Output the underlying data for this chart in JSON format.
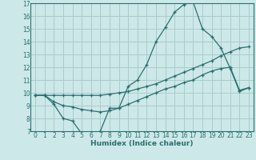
{
  "xlabel": "Humidex (Indice chaleur)",
  "background_color": "#cde8e8",
  "grid_color": "#aacccc",
  "line_color": "#2a7070",
  "xlim": [
    -0.5,
    23.5
  ],
  "ylim": [
    7,
    17
  ],
  "xticks": [
    0,
    1,
    2,
    3,
    4,
    5,
    6,
    7,
    8,
    9,
    10,
    11,
    12,
    13,
    14,
    15,
    16,
    17,
    18,
    19,
    20,
    21,
    22,
    23
  ],
  "yticks": [
    7,
    8,
    9,
    10,
    11,
    12,
    13,
    14,
    15,
    16,
    17
  ],
  "line1_x": [
    0,
    1,
    2,
    3,
    4,
    5,
    6,
    7,
    8,
    9,
    10,
    11,
    12,
    13,
    14,
    15,
    16,
    17,
    18,
    19,
    20,
    21,
    22,
    23
  ],
  "line1_y": [
    9.8,
    9.8,
    9.1,
    8.0,
    7.8,
    6.8,
    6.7,
    7.0,
    8.8,
    8.8,
    10.5,
    11.0,
    12.2,
    14.0,
    15.1,
    16.3,
    16.9,
    17.1,
    15.0,
    14.4,
    13.5,
    11.9,
    10.1,
    10.4
  ],
  "line2_x": [
    0,
    1,
    2,
    3,
    4,
    5,
    6,
    7,
    8,
    9,
    10,
    11,
    12,
    13,
    14,
    15,
    16,
    17,
    18,
    19,
    20,
    21,
    22,
    23
  ],
  "line2_y": [
    9.8,
    9.8,
    9.8,
    9.8,
    9.8,
    9.8,
    9.8,
    9.8,
    9.9,
    10.0,
    10.1,
    10.3,
    10.5,
    10.7,
    11.0,
    11.3,
    11.6,
    11.9,
    12.2,
    12.5,
    12.9,
    13.2,
    13.5,
    13.6
  ],
  "line3_x": [
    0,
    1,
    2,
    3,
    4,
    5,
    6,
    7,
    8,
    9,
    10,
    11,
    12,
    13,
    14,
    15,
    16,
    17,
    18,
    19,
    20,
    21,
    22,
    23
  ],
  "line3_y": [
    9.8,
    9.8,
    9.3,
    9.0,
    8.9,
    8.7,
    8.6,
    8.5,
    8.6,
    8.8,
    9.1,
    9.4,
    9.7,
    10.0,
    10.3,
    10.5,
    10.8,
    11.0,
    11.4,
    11.7,
    11.9,
    12.0,
    10.2,
    10.4
  ],
  "tick_fontsize": 5.5,
  "xlabel_fontsize": 6.5
}
